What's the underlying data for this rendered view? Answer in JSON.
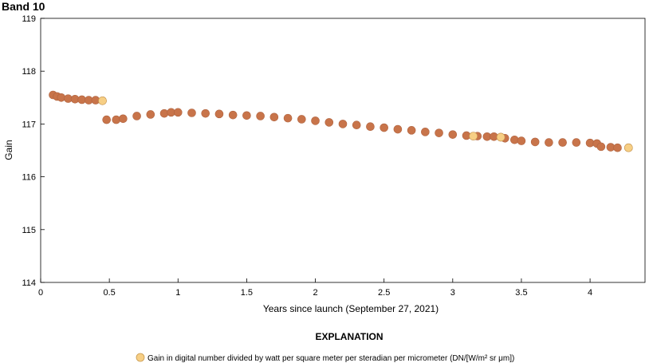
{
  "chart_data": {
    "type": "scatter",
    "title": "Band 10",
    "xlabel": "Years since launch (September 27, 2021)",
    "ylabel": "Gain",
    "xlim": [
      0,
      4.4
    ],
    "ylim": [
      114,
      119
    ],
    "xticks": [
      0,
      0.5,
      1,
      1.5,
      2,
      2.5,
      3,
      3.5,
      4
    ],
    "xtick_labels": [
      "0",
      "0.5",
      "1",
      "1.5",
      "2",
      "2.5",
      "3",
      "3.5",
      "4"
    ],
    "yticks": [
      114,
      115,
      116,
      117,
      118,
      119
    ],
    "ytick_labels": [
      "114",
      "115",
      "116",
      "117",
      "118",
      "119"
    ],
    "grid": false,
    "legend_position": "bottom-center",
    "explanation_title": "EXPLANATION",
    "series": [
      {
        "name": "Gain in digital number divided by watt per square meter per steradian per micrometer (DN/[W/m² sr μm])",
        "marker_color": "#c8744a",
        "edge_color": "#b06440",
        "legend_marker_color": "#f7cf85",
        "end_marker_color": "#f7cf85",
        "x": [
          0.09,
          0.12,
          0.15,
          0.2,
          0.25,
          0.3,
          0.35,
          0.4,
          0.45,
          0.48,
          0.55,
          0.6,
          0.7,
          0.8,
          0.9,
          0.95,
          1.0,
          1.1,
          1.2,
          1.3,
          1.4,
          1.5,
          1.6,
          1.7,
          1.8,
          1.9,
          2.0,
          2.1,
          2.2,
          2.3,
          2.4,
          2.5,
          2.6,
          2.7,
          2.8,
          2.9,
          3.0,
          3.1,
          3.15,
          3.18,
          3.25,
          3.3,
          3.35,
          3.38,
          3.45,
          3.5,
          3.6,
          3.7,
          3.8,
          3.9,
          4.0,
          4.05,
          4.08,
          4.15,
          4.2,
          4.28
        ],
        "y": [
          117.55,
          117.52,
          117.5,
          117.48,
          117.47,
          117.46,
          117.45,
          117.45,
          117.44,
          117.08,
          117.08,
          117.1,
          117.15,
          117.18,
          117.2,
          117.22,
          117.22,
          117.21,
          117.2,
          117.19,
          117.17,
          117.16,
          117.15,
          117.13,
          117.11,
          117.09,
          117.06,
          117.03,
          117.0,
          116.98,
          116.95,
          116.93,
          116.9,
          116.88,
          116.85,
          116.83,
          116.8,
          116.78,
          116.77,
          116.77,
          116.76,
          116.76,
          116.75,
          116.73,
          116.7,
          116.68,
          116.66,
          116.65,
          116.65,
          116.65,
          116.64,
          116.63,
          116.57,
          116.56,
          116.55,
          116.55
        ]
      }
    ]
  }
}
